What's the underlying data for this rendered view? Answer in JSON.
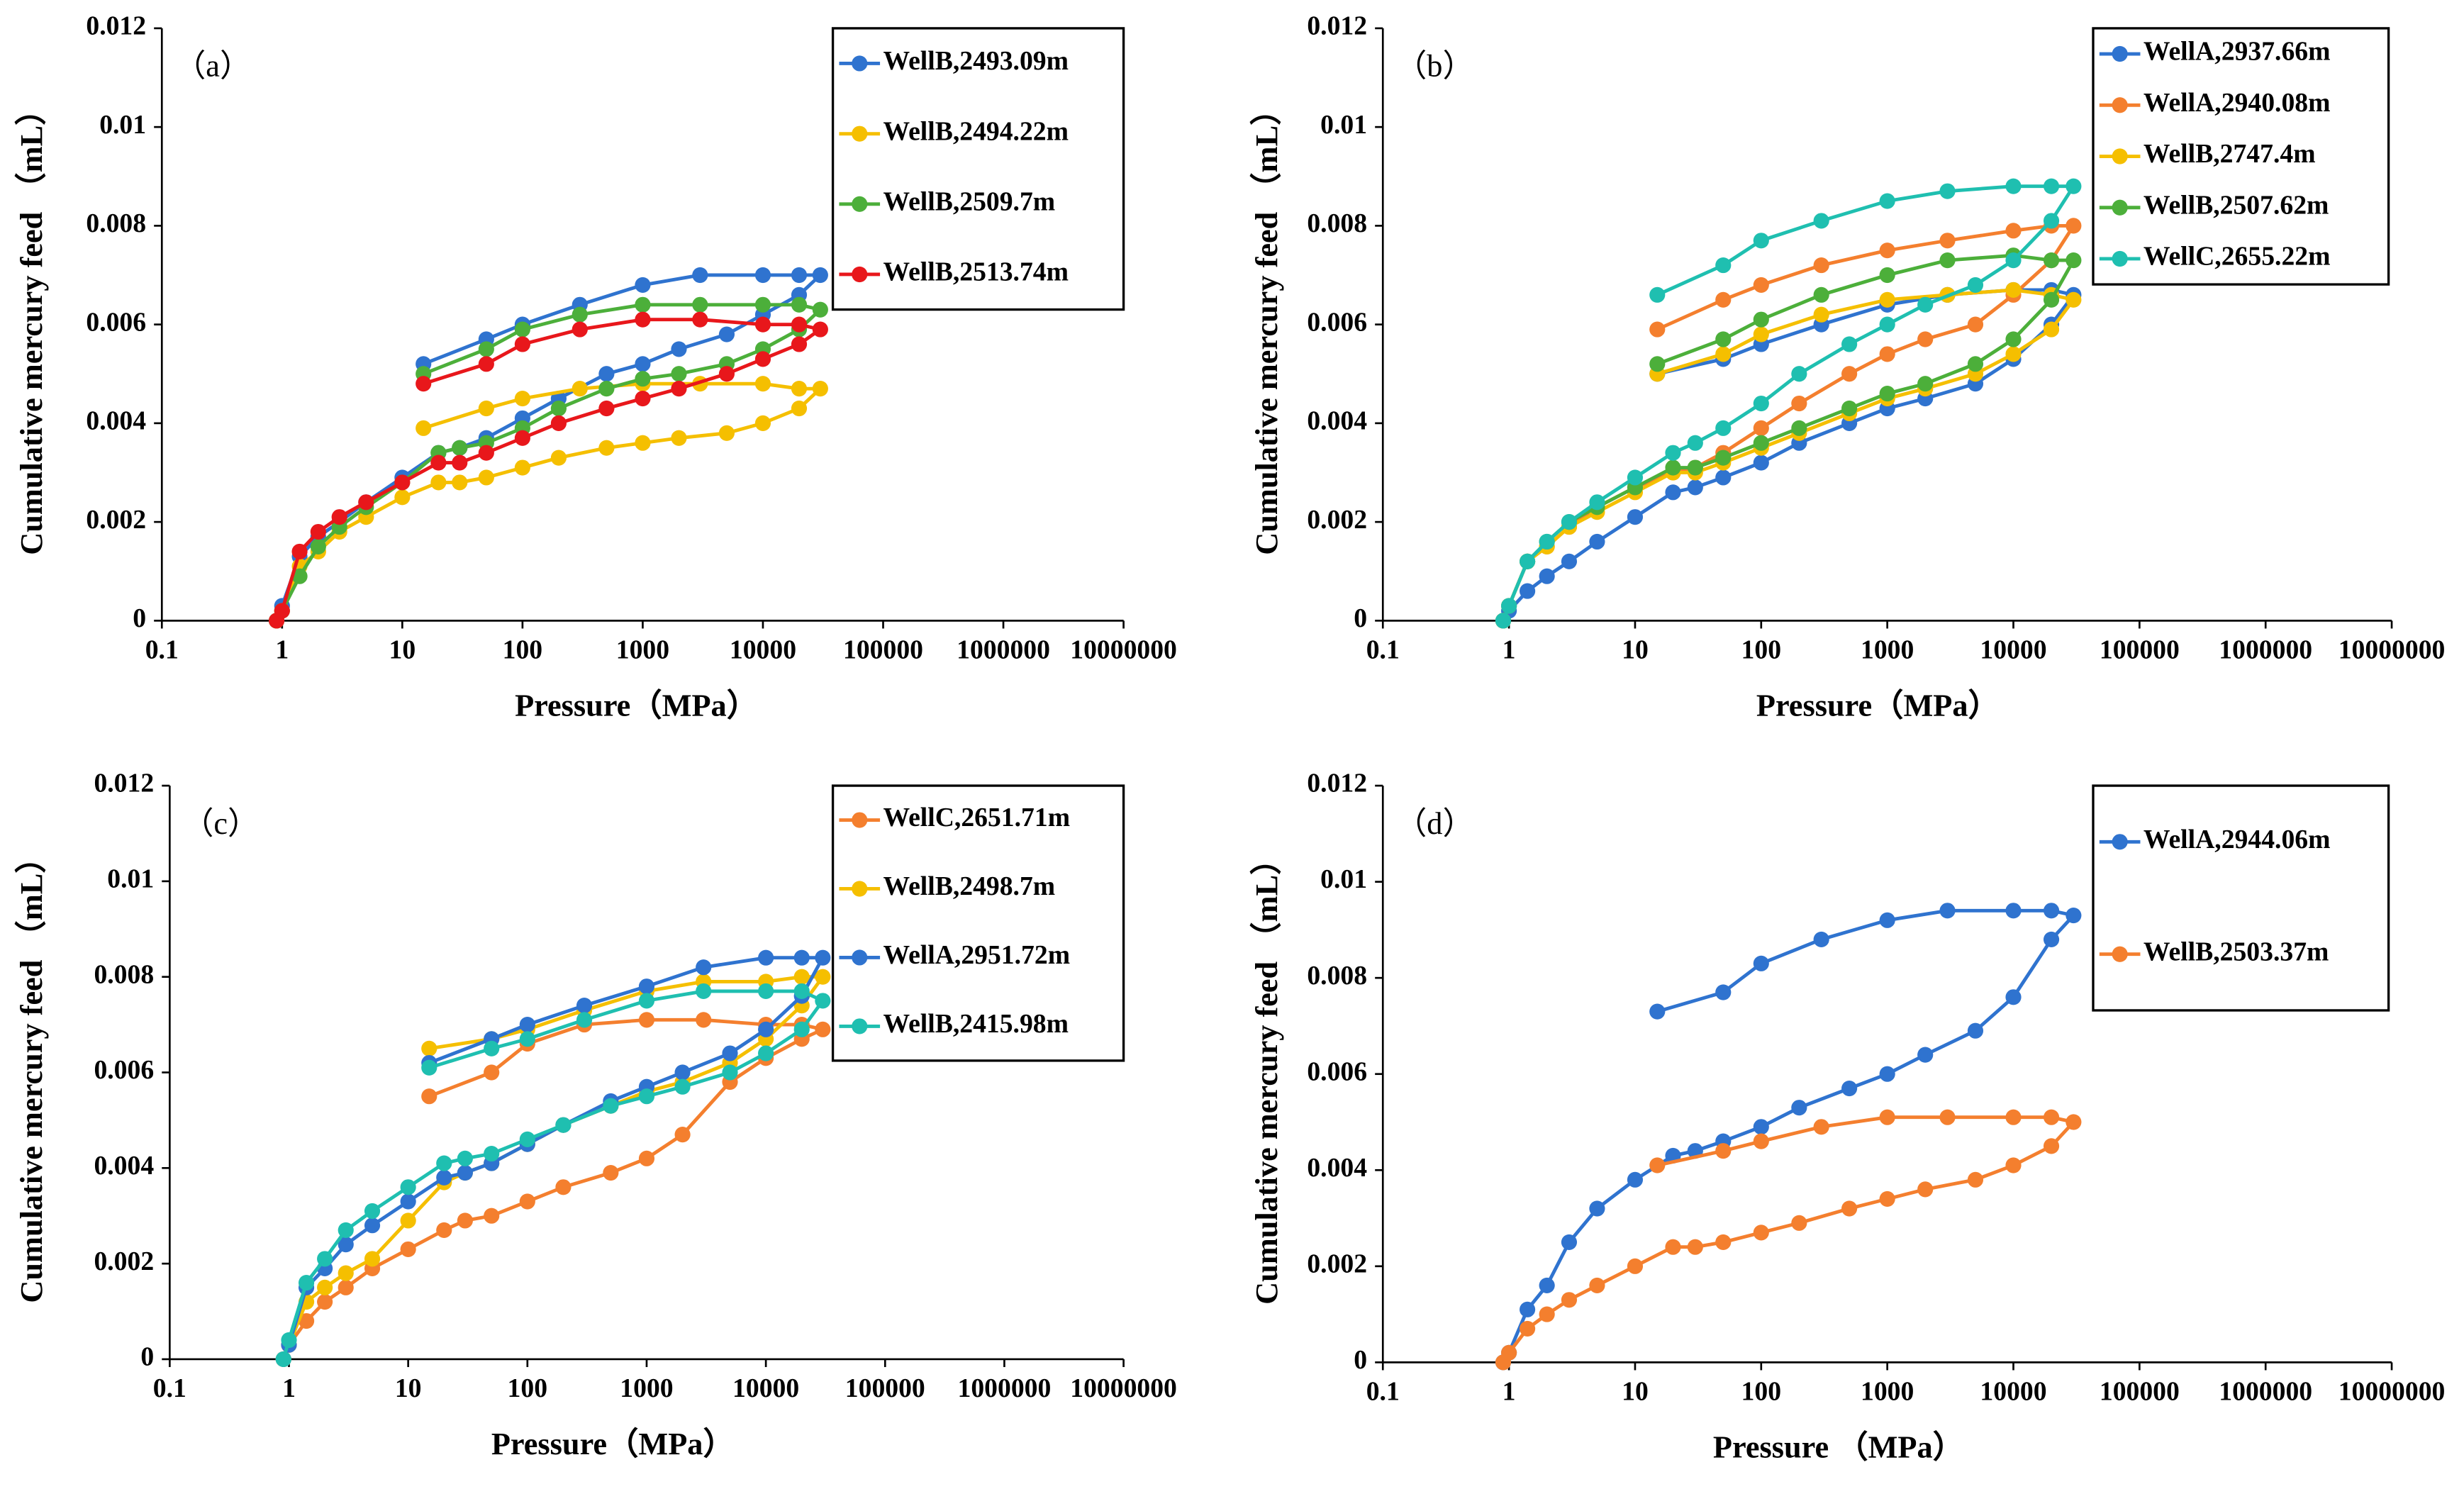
{
  "chart_data": [
    {
      "type": "line",
      "title": "（a）",
      "xlabel": "Pressure（MPa）",
      "ylabel": "Cumulative mercury feed （mL）",
      "log_x": true,
      "xlim": [
        0.1,
        10000000
      ],
      "xticks": [
        0.1,
        1,
        10,
        100,
        1000,
        10000,
        100000,
        1000000,
        10000000
      ],
      "ylim": [
        0,
        0.012
      ],
      "yticks": [
        0,
        0.002,
        0.004,
        0.006,
        0.008,
        0.01,
        0.012
      ],
      "x": [
        0.9,
        1,
        1.4,
        2,
        3,
        5,
        10,
        20,
        30,
        50,
        100,
        200,
        500,
        1000,
        2000,
        5000,
        10000,
        20000,
        30000,
        20000,
        10000,
        3000,
        1000,
        300,
        100,
        50,
        15
      ],
      "series": [
        {
          "name": "WellB,2493.09m",
          "color": "#2f73cf",
          "values": [
            0,
            0.0003,
            0.0013,
            0.0017,
            0.002,
            0.0024,
            0.0029,
            0.0034,
            0.0035,
            0.0037,
            0.0041,
            0.0045,
            0.005,
            0.0052,
            0.0055,
            0.0058,
            0.0062,
            0.0066,
            0.007,
            0.007,
            0.007,
            0.007,
            0.0068,
            0.0064,
            0.006,
            0.0057,
            0.0052
          ]
        },
        {
          "name": "WellB,2494.22m",
          "color": "#f5bf00",
          "values": [
            0,
            0.0002,
            0.0011,
            0.0014,
            0.0018,
            0.0021,
            0.0025,
            0.0028,
            0.0028,
            0.0029,
            0.0031,
            0.0033,
            0.0035,
            0.0036,
            0.0037,
            0.0038,
            0.004,
            0.0043,
            0.0047,
            0.0047,
            0.0048,
            0.0048,
            0.0048,
            0.0047,
            0.0045,
            0.0043,
            0.0039
          ]
        },
        {
          "name": "WellB,2509.7m",
          "color": "#4caf3a",
          "values": [
            0,
            0.0002,
            0.0009,
            0.0015,
            0.0019,
            0.0023,
            0.0028,
            0.0034,
            0.0035,
            0.0036,
            0.0039,
            0.0043,
            0.0047,
            0.0049,
            0.005,
            0.0052,
            0.0055,
            0.0059,
            0.0063,
            0.0064,
            0.0064,
            0.0064,
            0.0064,
            0.0062,
            0.0059,
            0.0055,
            0.005
          ]
        },
        {
          "name": "WellB,2513.74m",
          "color": "#e8171b",
          "values": [
            0,
            0.0002,
            0.0014,
            0.0018,
            0.0021,
            0.0024,
            0.0028,
            0.0032,
            0.0032,
            0.0034,
            0.0037,
            0.004,
            0.0043,
            0.0045,
            0.0047,
            0.005,
            0.0053,
            0.0056,
            0.0059,
            0.006,
            0.006,
            0.0061,
            0.0061,
            0.0059,
            0.0056,
            0.0052,
            0.0048
          ]
        }
      ]
    },
    {
      "type": "line",
      "title": "（b）",
      "xlabel": "Pressure（MPa）",
      "ylabel": "Cumulative mercury feed （mL）",
      "log_x": true,
      "xlim": [
        0.1,
        10000000
      ],
      "xticks": [
        0.1,
        1,
        10,
        100,
        1000,
        10000,
        100000,
        1000000,
        10000000
      ],
      "ylim": [
        0,
        0.012
      ],
      "yticks": [
        0,
        0.002,
        0.004,
        0.006,
        0.008,
        0.01,
        0.012
      ],
      "x": [
        0.9,
        1,
        1.4,
        2,
        3,
        5,
        10,
        20,
        30,
        50,
        100,
        200,
        500,
        1000,
        2000,
        5000,
        10000,
        20000,
        30000,
        20000,
        10000,
        3000,
        1000,
        300,
        100,
        50,
        15
      ],
      "series": [
        {
          "name": "WellA,2937.66m",
          "color": "#2f73cf",
          "values": [
            0,
            0.0002,
            0.0006,
            0.0009,
            0.0012,
            0.0016,
            0.0021,
            0.0026,
            0.0027,
            0.0029,
            0.0032,
            0.0036,
            0.004,
            0.0043,
            0.0045,
            0.0048,
            0.0053,
            0.006,
            0.0066,
            0.0067,
            0.0067,
            0.0066,
            0.0064,
            0.006,
            0.0056,
            0.0053,
            0.005
          ]
        },
        {
          "name": "WellA,2940.08m",
          "color": "#f47f2e",
          "values": [
            0,
            0.0003,
            0.0012,
            0.0015,
            0.0019,
            0.0023,
            0.0027,
            0.003,
            0.0031,
            0.0034,
            0.0039,
            0.0044,
            0.005,
            0.0054,
            0.0057,
            0.006,
            0.0066,
            0.0073,
            0.008,
            0.008,
            0.0079,
            0.0077,
            0.0075,
            0.0072,
            0.0068,
            0.0065,
            0.0059
          ]
        },
        {
          "name": "WellB,2747.4m",
          "color": "#f5bf00",
          "values": [
            0,
            0.0003,
            0.0012,
            0.0015,
            0.0019,
            0.0022,
            0.0026,
            0.003,
            0.003,
            0.0032,
            0.0035,
            0.0038,
            0.0042,
            0.0045,
            0.0047,
            0.005,
            0.0054,
            0.0059,
            0.0065,
            0.0066,
            0.0067,
            0.0066,
            0.0065,
            0.0062,
            0.0058,
            0.0054,
            0.005
          ]
        },
        {
          "name": "WellB,2507.62m",
          "color": "#4caf3a",
          "values": [
            0,
            0.0003,
            0.0012,
            0.0016,
            0.002,
            0.0023,
            0.0027,
            0.0031,
            0.0031,
            0.0033,
            0.0036,
            0.0039,
            0.0043,
            0.0046,
            0.0048,
            0.0052,
            0.0057,
            0.0065,
            0.0073,
            0.0073,
            0.0074,
            0.0073,
            0.007,
            0.0066,
            0.0061,
            0.0057,
            0.0052
          ]
        },
        {
          "name": "WellC,2655.22m",
          "color": "#1fbfb0",
          "values": [
            0,
            0.0003,
            0.0012,
            0.0016,
            0.002,
            0.0024,
            0.0029,
            0.0034,
            0.0036,
            0.0039,
            0.0044,
            0.005,
            0.0056,
            0.006,
            0.0064,
            0.0068,
            0.0073,
            0.0081,
            0.0088,
            0.0088,
            0.0088,
            0.0087,
            0.0085,
            0.0081,
            0.0077,
            0.0072,
            0.0066
          ]
        }
      ]
    },
    {
      "type": "line",
      "title": "（c）",
      "xlabel": "Pressure（MPa）",
      "ylabel": "Cumulative mercury feed （mL）",
      "log_x": true,
      "xlim": [
        0.1,
        10000000
      ],
      "xticks": [
        0.1,
        1,
        10,
        100,
        1000,
        10000,
        100000,
        1000000,
        10000000
      ],
      "ylim": [
        0,
        0.012
      ],
      "yticks": [
        0,
        0.002,
        0.004,
        0.006,
        0.008,
        0.01,
        0.012
      ],
      "x": [
        0.9,
        1,
        1.4,
        2,
        3,
        5,
        10,
        20,
        30,
        50,
        100,
        200,
        500,
        1000,
        2000,
        5000,
        10000,
        20000,
        30000,
        20000,
        10000,
        3000,
        1000,
        300,
        100,
        50,
        15
      ],
      "series": [
        {
          "name": "WellC,2651.71m",
          "color": "#f47f2e",
          "values": [
            0,
            0.0003,
            0.0008,
            0.0012,
            0.0015,
            0.0019,
            0.0023,
            0.0027,
            0.0029,
            0.003,
            0.0033,
            0.0036,
            0.0039,
            0.0042,
            0.0047,
            0.0058,
            0.0063,
            0.0067,
            0.0069,
            0.007,
            0.007,
            0.0071,
            0.0071,
            0.007,
            0.0066,
            0.006,
            0.0055
          ]
        },
        {
          "name": "WellB,2498.7m",
          "color": "#f5bf00",
          "values": [
            0,
            0.0003,
            0.0012,
            0.0015,
            0.0018,
            0.0021,
            0.0029,
            0.0037,
            0.0039,
            0.0041,
            0.0045,
            0.0049,
            0.0053,
            0.0056,
            0.0058,
            0.0062,
            0.0067,
            0.0074,
            0.008,
            0.008,
            0.0079,
            0.0079,
            0.0077,
            0.0073,
            0.0069,
            0.0067,
            0.0065
          ]
        },
        {
          "name": "WellA,2951.72m",
          "color": "#2f73cf",
          "values": [
            0,
            0.0003,
            0.0015,
            0.0019,
            0.0024,
            0.0028,
            0.0033,
            0.0038,
            0.0039,
            0.0041,
            0.0045,
            0.0049,
            0.0054,
            0.0057,
            0.006,
            0.0064,
            0.0069,
            0.0076,
            0.0084,
            0.0084,
            0.0084,
            0.0082,
            0.0078,
            0.0074,
            0.007,
            0.0067,
            0.0062
          ]
        },
        {
          "name": "WellB,2415.98m",
          "color": "#1fbfb0",
          "values": [
            0,
            0.0004,
            0.0016,
            0.0021,
            0.0027,
            0.0031,
            0.0036,
            0.0041,
            0.0042,
            0.0043,
            0.0046,
            0.0049,
            0.0053,
            0.0055,
            0.0057,
            0.006,
            0.0064,
            0.0069,
            0.0075,
            0.0077,
            0.0077,
            0.0077,
            0.0075,
            0.0071,
            0.0067,
            0.0065,
            0.0061
          ]
        }
      ]
    },
    {
      "type": "line",
      "title": "（d）",
      "xlabel": "Pressure （MPa）",
      "ylabel": "Cumulative mercury feed （mL）",
      "log_x": true,
      "xlim": [
        0.1,
        10000000
      ],
      "xticks": [
        0.1,
        1,
        10,
        100,
        1000,
        10000,
        100000,
        1000000,
        10000000
      ],
      "ylim": [
        0,
        0.012
      ],
      "yticks": [
        0,
        0.002,
        0.004,
        0.006,
        0.008,
        0.01,
        0.012
      ],
      "x": [
        0.9,
        1,
        1.4,
        2,
        3,
        5,
        10,
        20,
        30,
        50,
        100,
        200,
        500,
        1000,
        2000,
        5000,
        10000,
        20000,
        30000,
        20000,
        10000,
        3000,
        1000,
        300,
        100,
        50,
        15
      ],
      "series": [
        {
          "name": "WellA,2944.06m",
          "color": "#2f73cf",
          "values": [
            0,
            0.0002,
            0.0011,
            0.0016,
            0.0025,
            0.0032,
            0.0038,
            0.0043,
            0.0044,
            0.0046,
            0.0049,
            0.0053,
            0.0057,
            0.006,
            0.0064,
            0.0069,
            0.0076,
            0.0088,
            0.0093,
            0.0094,
            0.0094,
            0.0094,
            0.0092,
            0.0088,
            0.0083,
            0.0077,
            0.0073
          ]
        },
        {
          "name": "WellB,2503.37m",
          "color": "#f47f2e",
          "values": [
            0,
            0.0002,
            0.0007,
            0.001,
            0.0013,
            0.0016,
            0.002,
            0.0024,
            0.0024,
            0.0025,
            0.0027,
            0.0029,
            0.0032,
            0.0034,
            0.0036,
            0.0038,
            0.0041,
            0.0045,
            0.005,
            0.0051,
            0.0051,
            0.0051,
            0.0051,
            0.0049,
            0.0046,
            0.0044,
            0.0041
          ]
        }
      ]
    }
  ]
}
